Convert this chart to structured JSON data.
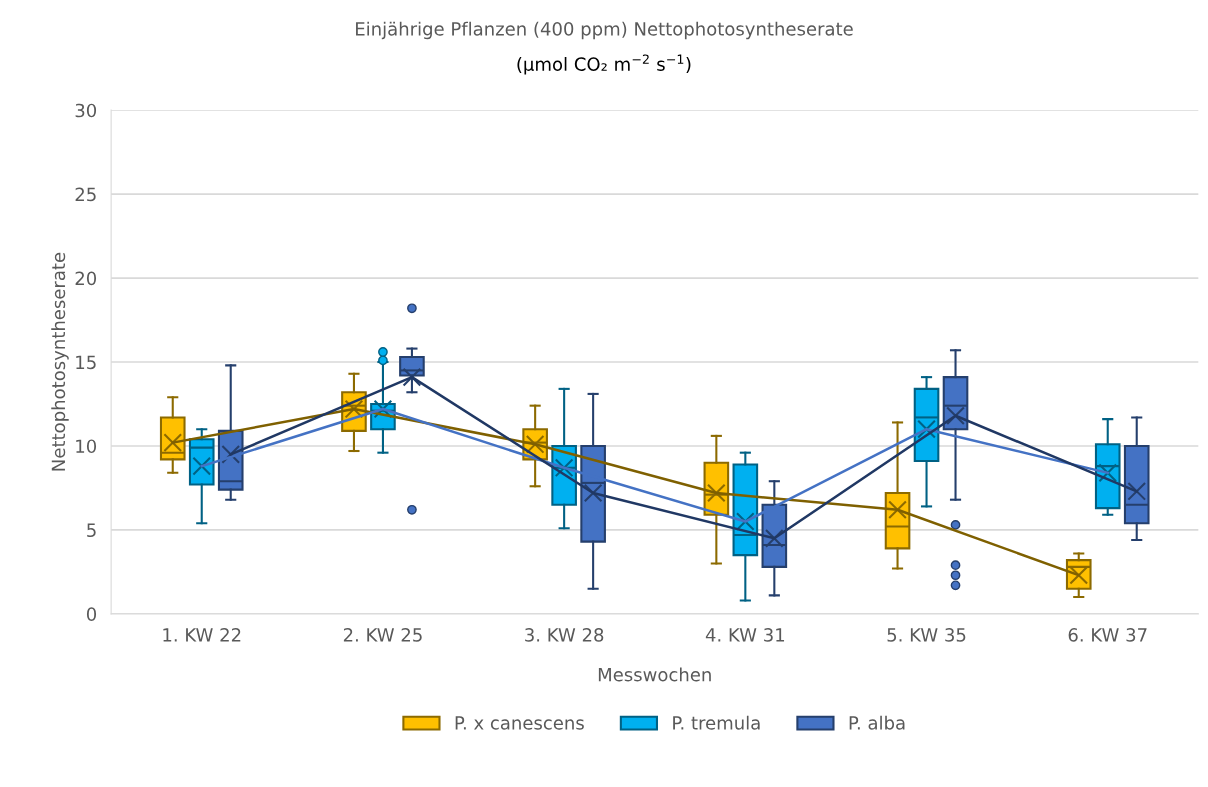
{
  "chart_data": {
    "type": "box",
    "title": "Einjährige Pflanzen (400 ppm) Nettophotosyntheserate",
    "subtitle": "(µmol CO₂ m$^{−2}$ s$^{−1}$)",
    "xlabel": "Messwochen",
    "ylabel": "Nettophotosyntheserate",
    "categories": [
      "1. KW 22",
      "2. KW 25",
      "3. KW 28",
      "4. KW 31",
      "5. KW 35",
      "6. KW 37"
    ],
    "ylim": [
      0,
      30
    ],
    "yticks": [
      0,
      5,
      10,
      15,
      20,
      25,
      30
    ],
    "grid": "y",
    "legend": "bottom",
    "marker": "cross",
    "series": [
      {
        "name": "P. x canescens",
        "color": "#ffc000",
        "boxes": [
          {
            "low": 8.4,
            "q1": 9.2,
            "median": 9.6,
            "q3": 11.7,
            "high": 12.9,
            "mean": 10.2
          },
          {
            "low": 9.7,
            "q1": 10.9,
            "median": 12.4,
            "q3": 13.2,
            "high": 14.3,
            "mean": 12.2
          },
          {
            "low": 7.6,
            "q1": 9.2,
            "median": 10.2,
            "q3": 11.0,
            "high": 12.4,
            "mean": 10.1
          },
          {
            "low": 3.0,
            "q1": 5.9,
            "median": 7.1,
            "q3": 9.0,
            "high": 10.6,
            "mean": 7.2
          },
          {
            "low": 2.7,
            "q1": 3.9,
            "median": 5.2,
            "q3": 7.2,
            "high": 11.4,
            "mean": 6.2
          },
          {
            "low": 1.0,
            "q1": 1.5,
            "median": 2.8,
            "q3": 3.2,
            "high": 3.6,
            "mean": 2.3
          }
        ]
      },
      {
        "name": "P. tremula",
        "color": "#00b0f0",
        "boxes": [
          {
            "low": 5.4,
            "q1": 7.7,
            "median": 9.9,
            "q3": 10.4,
            "high": 11.0,
            "mean": 8.8
          },
          {
            "low": 9.6,
            "q1": 11.0,
            "median": 12.1,
            "q3": 12.5,
            "high": 15.0,
            "mean": 12.2,
            "outliers": [
              15.1,
              15.6
            ]
          },
          {
            "low": 5.1,
            "q1": 6.5,
            "median": 8.7,
            "q3": 10.0,
            "high": 13.4,
            "mean": 8.7
          },
          {
            "low": 0.8,
            "q1": 3.5,
            "median": 4.7,
            "q3": 8.9,
            "high": 9.6,
            "mean": 5.5
          },
          {
            "low": 6.4,
            "q1": 9.1,
            "median": 11.7,
            "q3": 13.4,
            "high": 14.1,
            "mean": 11.0
          },
          {
            "low": 5.9,
            "q1": 6.3,
            "median": 8.8,
            "q3": 10.1,
            "high": 11.6,
            "mean": 8.4
          }
        ]
      },
      {
        "name": "P. alba",
        "color": "#4472c4",
        "boxes": [
          {
            "low": 6.8,
            "q1": 7.4,
            "median": 7.9,
            "q3": 10.9,
            "high": 14.8,
            "mean": 9.5
          },
          {
            "low": 13.2,
            "q1": 14.2,
            "median": 14.5,
            "q3": 15.3,
            "high": 15.8,
            "mean": 14.1,
            "outliers": [
              18.2,
              6.2
            ]
          },
          {
            "low": 1.5,
            "q1": 4.3,
            "median": 7.8,
            "q3": 10.0,
            "high": 13.1,
            "mean": 7.2
          },
          {
            "low": 1.1,
            "q1": 2.8,
            "median": 4.1,
            "q3": 6.5,
            "high": 7.9,
            "mean": 4.5
          },
          {
            "low": 6.8,
            "q1": 11.0,
            "median": 12.4,
            "q3": 14.1,
            "high": 15.7,
            "mean": 11.8,
            "outliers": [
              5.3,
              2.9,
              2.3,
              1.7
            ]
          },
          {
            "low": 4.4,
            "q1": 5.4,
            "median": 6.5,
            "q3": 10.0,
            "high": 11.7,
            "mean": 7.3
          }
        ]
      },
      {
        "type": "line",
        "marker": "none",
        "color": "#7f6000",
        "values": [
          10.2,
          12.2,
          10.1,
          7.2,
          6.2,
          2.3
        ]
      },
      {
        "type": "line",
        "marker": "none",
        "color": "#4472c4",
        "values": [
          8.8,
          12.2,
          8.7,
          5.5,
          11.0,
          8.4
        ]
      },
      {
        "type": "line",
        "marker": "none",
        "color": "#203864",
        "values": [
          9.5,
          14.1,
          7.2,
          4.5,
          11.8,
          7.3
        ]
      }
    ]
  }
}
